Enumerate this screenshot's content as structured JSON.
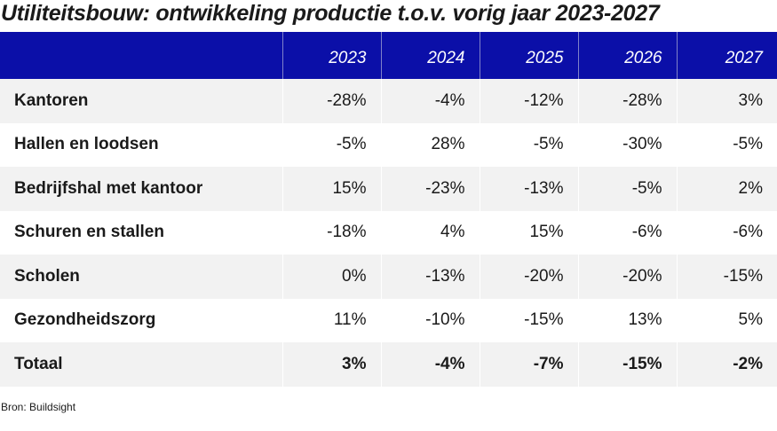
{
  "title": "Utiliteitsbouw: ontwikkeling productie t.o.v. vorig jaar 2023-2027",
  "table": {
    "header_label": "",
    "years": [
      "2023",
      "2024",
      "2025",
      "2026",
      "2027"
    ],
    "rows": [
      {
        "label": "Kantoren",
        "values": [
          "-28%",
          "-4%",
          "-12%",
          "-28%",
          "3%"
        ]
      },
      {
        "label": "Hallen en loodsen",
        "values": [
          "-5%",
          "28%",
          "-5%",
          "-30%",
          "-5%"
        ]
      },
      {
        "label": "Bedrijfshal met kantoor",
        "values": [
          "15%",
          "-23%",
          "-13%",
          "-5%",
          "2%"
        ]
      },
      {
        "label": "Schuren en stallen",
        "values": [
          "-18%",
          "4%",
          "15%",
          "-6%",
          "-6%"
        ]
      },
      {
        "label": "Scholen",
        "values": [
          "0%",
          "-13%",
          "-20%",
          "-20%",
          "-15%"
        ]
      },
      {
        "label": "Gezondheidszorg",
        "values": [
          "11%",
          "-10%",
          "-15%",
          "13%",
          "5%"
        ]
      },
      {
        "label": "Totaal",
        "values": [
          "3%",
          "-4%",
          "-7%",
          "-15%",
          "-2%"
        ]
      }
    ]
  },
  "source": "Bron: Buildsight",
  "colors": {
    "header_bg": "#0b0fa8",
    "header_text": "#ffffff",
    "stripe": "#f2f2f2"
  }
}
